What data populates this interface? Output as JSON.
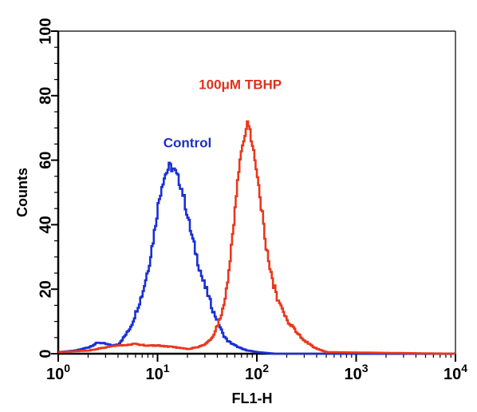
{
  "chart_data": {
    "type": "line",
    "xlabel": "FL1-H",
    "ylabel": "Counts",
    "x_scale": "log",
    "xlim": [
      1,
      10000
    ],
    "ylim": [
      0,
      100
    ],
    "grid": false,
    "legend": "none",
    "x_ticks": [
      {
        "value": 1,
        "base": "10",
        "exp": "0"
      },
      {
        "value": 10,
        "base": "10",
        "exp": "1"
      },
      {
        "value": 100,
        "base": "10",
        "exp": "2"
      },
      {
        "value": 1000,
        "base": "10",
        "exp": "3"
      },
      {
        "value": 10000,
        "base": "10",
        "exp": "4"
      }
    ],
    "y_ticks": [
      0,
      20,
      40,
      60,
      80,
      100
    ],
    "series": [
      {
        "name": "Control",
        "color": "#1a2fd6",
        "label_color": "#1b2ec8",
        "label_at": {
          "x": 20,
          "y": 64
        },
        "x": [
          1,
          1.5,
          2,
          2.5,
          3,
          3.5,
          4,
          4.5,
          5,
          5.5,
          6,
          7,
          8,
          9,
          10,
          11,
          12,
          13,
          14,
          15,
          16,
          17,
          18,
          20,
          22,
          25,
          28,
          32,
          36,
          40,
          45,
          50,
          60,
          70,
          80,
          100,
          150,
          10000
        ],
        "y": [
          0.5,
          1,
          2,
          3.5,
          3,
          2.5,
          3,
          5,
          7,
          9.5,
          13,
          19,
          27,
          36,
          46,
          53,
          56,
          58,
          57.5,
          56,
          54,
          52,
          49,
          42,
          36,
          29,
          23,
          18,
          13,
          10,
          6,
          4,
          2.5,
          1.5,
          1,
          0.5,
          0,
          0
        ]
      },
      {
        "name": "100μM TBHP",
        "color": "#e8381c",
        "label_color": "#e0311c",
        "label_at": {
          "x": 68,
          "y": 82
        },
        "x": [
          1,
          2,
          3,
          4,
          6,
          8,
          10,
          15,
          20,
          25,
          30,
          35,
          40,
          45,
          50,
          55,
          60,
          65,
          70,
          75,
          80,
          85,
          90,
          100,
          110,
          120,
          130,
          140,
          150,
          160,
          180,
          200,
          230,
          260,
          300,
          350,
          400,
          500,
          10000
        ],
        "y": [
          0.5,
          1,
          2,
          2.5,
          3,
          2.5,
          2.5,
          2,
          1.5,
          2,
          3,
          5,
          9,
          14,
          22,
          34,
          46,
          57,
          64,
          69,
          71,
          68,
          64,
          55,
          45,
          35,
          28,
          23,
          20,
          17,
          13,
          10,
          8,
          6,
          4,
          2.5,
          1.5,
          0.5,
          0
        ]
      }
    ]
  }
}
